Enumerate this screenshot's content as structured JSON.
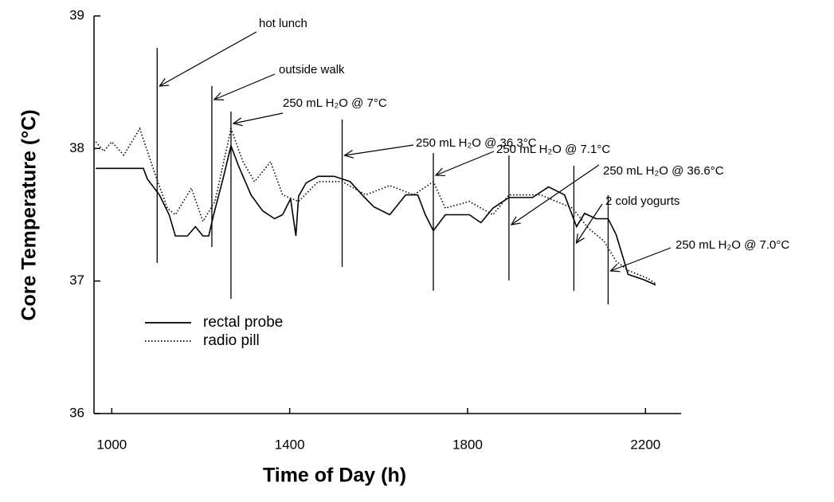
{
  "chart_data": {
    "type": "line",
    "x_label": "Time of Day (h)",
    "y_label": "Core Temperature (°C)",
    "xlim": [
      960,
      2280
    ],
    "xticks": [
      1000,
      1400,
      1800,
      2200
    ],
    "ylim": [
      36,
      39
    ],
    "yticks": [
      36,
      37,
      38,
      39
    ],
    "series": [
      {
        "name": "rectal probe",
        "color": "#000000",
        "style": "solid",
        "x": [
          964,
          1071,
          1080,
          1107,
          1129,
          1143,
          1170,
          1188,
          1205,
          1218,
          1229,
          1250,
          1268,
          1286,
          1313,
          1339,
          1366,
          1384,
          1402,
          1414,
          1420,
          1437,
          1464,
          1500,
          1536,
          1563,
          1589,
          1625,
          1661,
          1688,
          1705,
          1723,
          1750,
          1804,
          1830,
          1857,
          1893,
          1946,
          1982,
          2018,
          2045,
          2063,
          2089,
          2116,
          2134,
          2161,
          2196,
          2223
        ],
        "values": [
          37.85,
          37.85,
          37.77,
          37.65,
          37.5,
          37.34,
          37.34,
          37.41,
          37.34,
          37.34,
          37.5,
          37.77,
          38.02,
          37.86,
          37.65,
          37.53,
          37.47,
          37.5,
          37.62,
          37.34,
          37.64,
          37.74,
          37.79,
          37.79,
          37.75,
          37.65,
          37.56,
          37.5,
          37.65,
          37.65,
          37.5,
          37.38,
          37.5,
          37.5,
          37.44,
          37.55,
          37.63,
          37.63,
          37.71,
          37.65,
          37.41,
          37.51,
          37.47,
          37.47,
          37.35,
          37.05,
          37.01,
          36.97
        ]
      },
      {
        "name": "radio pill",
        "color": "#000000",
        "style": "dotted",
        "x": [
          964,
          982,
          1000,
          1027,
          1063,
          1080,
          1098,
          1125,
          1143,
          1179,
          1205,
          1232,
          1268,
          1295,
          1321,
          1357,
          1384,
          1420,
          1464,
          1518,
          1571,
          1625,
          1679,
          1723,
          1750,
          1804,
          1857,
          1893,
          1964,
          2036,
          2071,
          2107,
          2134,
          2161,
          2205,
          2223
        ],
        "values": [
          38.05,
          37.98,
          38.05,
          37.95,
          38.15,
          37.98,
          37.8,
          37.55,
          37.5,
          37.7,
          37.45,
          37.6,
          38.15,
          37.9,
          37.75,
          37.9,
          37.65,
          37.6,
          37.75,
          37.75,
          37.65,
          37.72,
          37.65,
          37.75,
          37.55,
          37.6,
          37.5,
          37.65,
          37.65,
          37.55,
          37.4,
          37.3,
          37.15,
          37.08,
          37.02,
          36.98
        ]
      }
    ],
    "annotations": [
      {
        "label": "hot lunch",
        "x": 1102
      },
      {
        "label": "outside walk",
        "x": 1225
      },
      {
        "label": "250 mL H₂O @ 7°C",
        "x": 1268
      },
      {
        "label": "250 mL H₂O @ 36.3°C",
        "x": 1518
      },
      {
        "label": "250 mL H₂O @ 7.1°C",
        "x": 1723
      },
      {
        "label": "250 mL H₂O @ 36.6°C",
        "x": 1893
      },
      {
        "label": "2 cold yogurts",
        "x": 2039
      },
      {
        "label": "250 mL H₂O @ 7.0°C",
        "x": 2116
      }
    ]
  }
}
